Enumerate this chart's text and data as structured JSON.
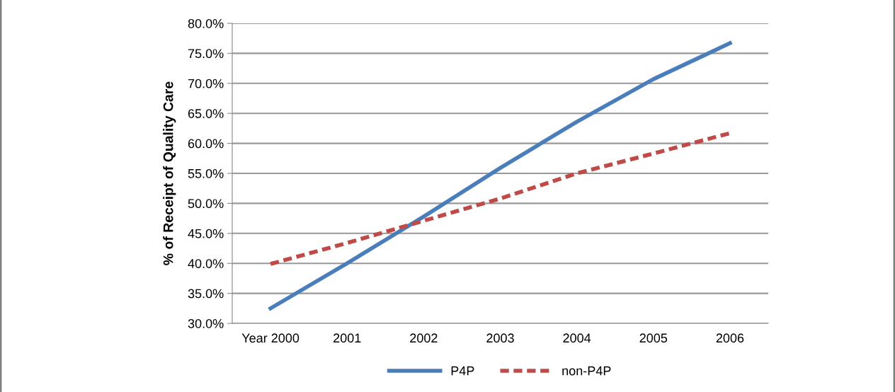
{
  "chart_data": {
    "type": "line",
    "ylabel": "% of Receipt of Quality Care",
    "categories": [
      "Year 2000",
      "2001",
      "2002",
      "2003",
      "2004",
      "2005",
      "2006"
    ],
    "series": [
      {
        "name": "P4P",
        "color": "#4a7ebb",
        "line_style": "solid",
        "values": [
          32.5,
          40.0,
          47.8,
          55.9,
          63.6,
          70.7,
          76.7
        ]
      },
      {
        "name": "non-P4P",
        "color": "#be4b48",
        "line_style": "dashed",
        "values": [
          39.9,
          43.4,
          47.1,
          50.8,
          55.0,
          58.3,
          61.7
        ]
      }
    ],
    "ylim": [
      30,
      80
    ],
    "yticks": [
      {
        "value": 30,
        "label": "30.0%"
      },
      {
        "value": 35,
        "label": "35.0%"
      },
      {
        "value": 40,
        "label": "40.0%"
      },
      {
        "value": 45,
        "label": "45.0%"
      },
      {
        "value": 50,
        "label": "50.0%"
      },
      {
        "value": 55,
        "label": "55.0%"
      },
      {
        "value": 60,
        "label": "60.0%"
      },
      {
        "value": 65,
        "label": "65.0%"
      },
      {
        "value": 70,
        "label": "70.0%"
      },
      {
        "value": 75,
        "label": "75.0%"
      },
      {
        "value": 80,
        "label": "80.0%"
      }
    ],
    "grid": "y",
    "legend": "bottom",
    "marker": "none"
  }
}
